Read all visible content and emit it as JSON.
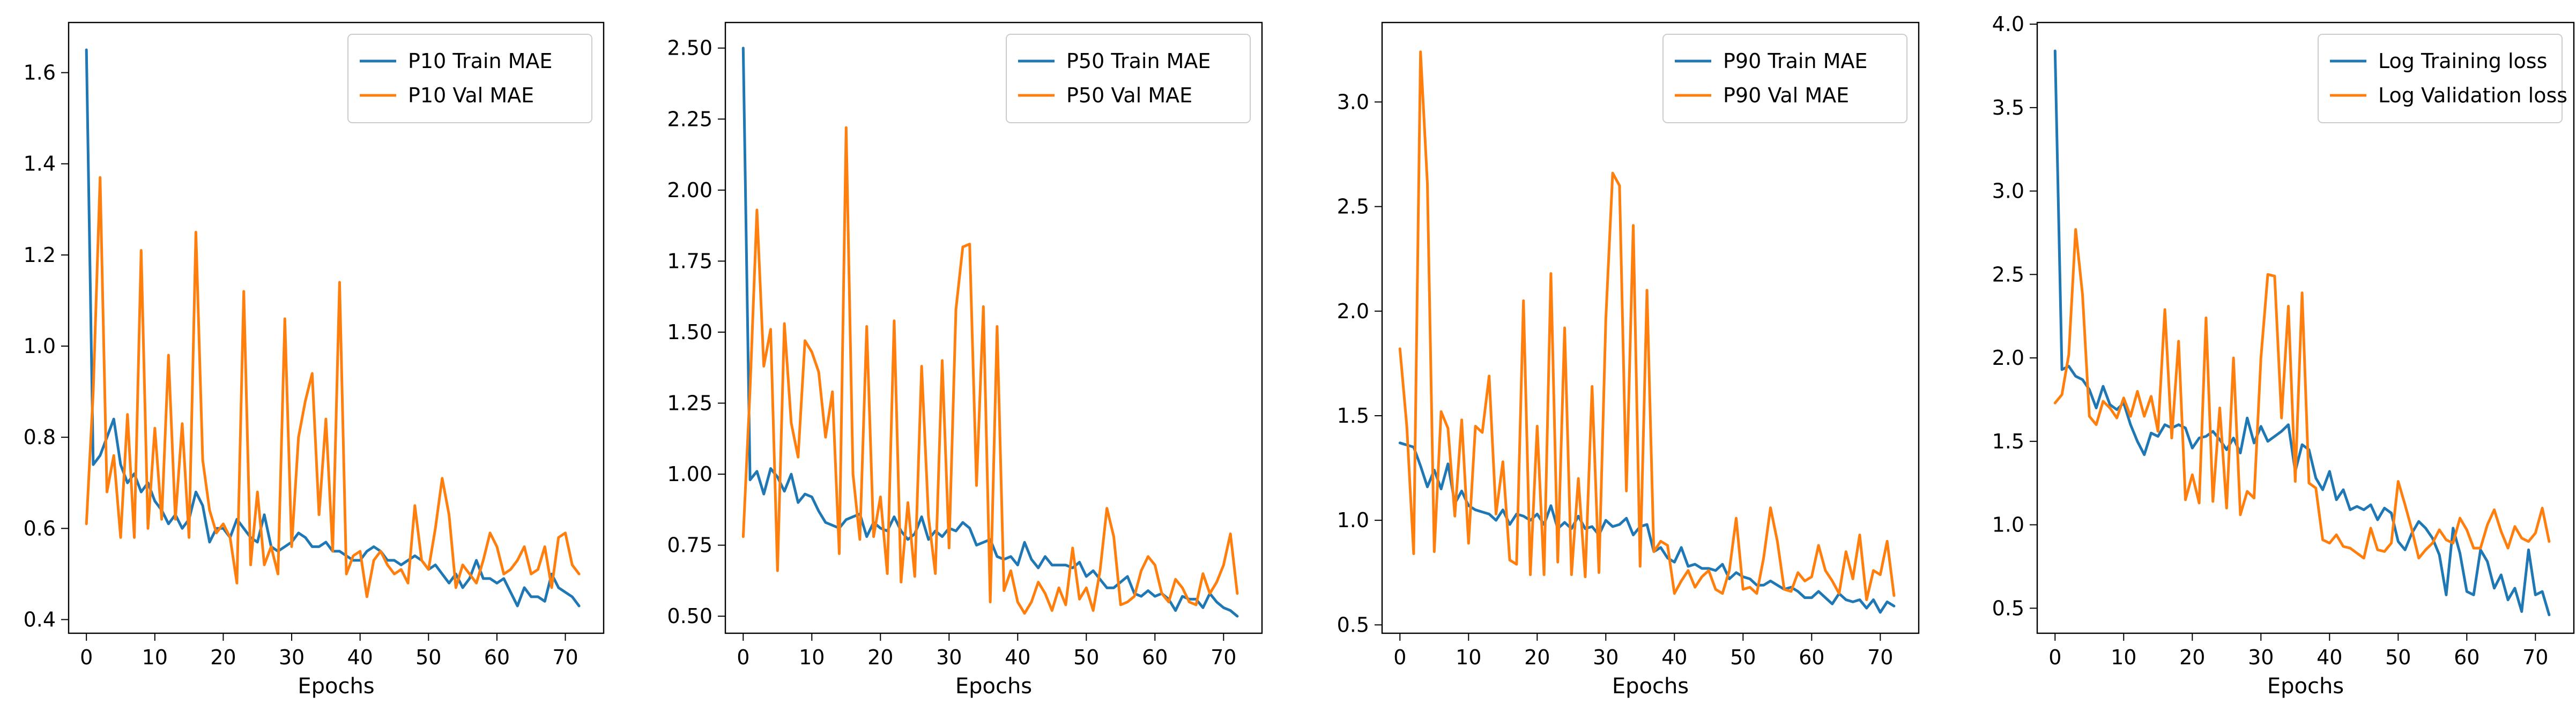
{
  "chart_data": [
    {
      "type": "line",
      "xlabel": "Epochs",
      "ylabel": "",
      "xlim": [
        -2.6,
        75.6
      ],
      "ylim": [
        0.37,
        1.71
      ],
      "xticks": [
        0,
        10,
        20,
        30,
        40,
        50,
        60,
        70
      ],
      "yticks": [
        0.4,
        0.6,
        0.8,
        1.0,
        1.2,
        1.4,
        1.6
      ],
      "ytick_labels": [
        "0.4",
        "0.6",
        "0.8",
        "1.0",
        "1.2",
        "1.4",
        "1.6"
      ],
      "legend_position": "top-right",
      "series": [
        {
          "name": "P10 Train MAE",
          "color": "#1f77b4",
          "values": [
            1.65,
            0.74,
            0.76,
            0.8,
            0.84,
            0.74,
            0.7,
            0.72,
            0.68,
            0.7,
            0.66,
            0.64,
            0.61,
            0.63,
            0.6,
            0.62,
            0.68,
            0.65,
            0.57,
            0.6,
            0.6,
            0.58,
            0.62,
            0.6,
            0.58,
            0.57,
            0.63,
            0.56,
            0.55,
            0.56,
            0.57,
            0.59,
            0.58,
            0.56,
            0.56,
            0.57,
            0.55,
            0.55,
            0.54,
            0.53,
            0.53,
            0.55,
            0.56,
            0.55,
            0.53,
            0.53,
            0.52,
            0.53,
            0.54,
            0.53,
            0.51,
            0.52,
            0.5,
            0.48,
            0.5,
            0.47,
            0.49,
            0.53,
            0.49,
            0.49,
            0.48,
            0.49,
            0.46,
            0.43,
            0.47,
            0.45,
            0.45,
            0.44,
            0.5,
            0.47,
            0.46,
            0.45,
            0.43
          ]
        },
        {
          "name": "P10 Val MAE",
          "color": "#ff7f0e",
          "values": [
            0.61,
            0.9,
            1.37,
            0.68,
            0.76,
            0.58,
            0.85,
            0.58,
            1.21,
            0.6,
            0.82,
            0.62,
            0.98,
            0.62,
            0.83,
            0.58,
            1.25,
            0.75,
            0.64,
            0.59,
            0.61,
            0.58,
            0.48,
            1.12,
            0.52,
            0.68,
            0.52,
            0.56,
            0.5,
            1.06,
            0.56,
            0.8,
            0.88,
            0.94,
            0.63,
            0.84,
            0.55,
            1.14,
            0.5,
            0.54,
            0.55,
            0.45,
            0.53,
            0.55,
            0.52,
            0.5,
            0.51,
            0.48,
            0.65,
            0.53,
            0.51,
            0.6,
            0.71,
            0.63,
            0.47,
            0.52,
            0.5,
            0.48,
            0.53,
            0.59,
            0.56,
            0.5,
            0.51,
            0.53,
            0.56,
            0.5,
            0.51,
            0.56,
            0.47,
            0.58,
            0.59,
            0.52,
            0.5
          ]
        }
      ]
    },
    {
      "type": "line",
      "xlabel": "Epochs",
      "ylabel": "",
      "xlim": [
        -2.6,
        75.6
      ],
      "ylim": [
        0.44,
        2.59
      ],
      "xticks": [
        0,
        10,
        20,
        30,
        40,
        50,
        60,
        70
      ],
      "yticks": [
        0.5,
        0.75,
        1.0,
        1.25,
        1.5,
        1.75,
        2.0,
        2.25,
        2.5
      ],
      "ytick_labels": [
        "0.50",
        "0.75",
        "1.00",
        "1.25",
        "1.50",
        "1.75",
        "2.00",
        "2.25",
        "2.50"
      ],
      "legend_position": "top-right",
      "series": [
        {
          "name": "P50 Train MAE",
          "color": "#1f77b4",
          "values": [
            2.5,
            0.98,
            1.01,
            0.93,
            1.02,
            0.99,
            0.94,
            1.0,
            0.9,
            0.93,
            0.92,
            0.87,
            0.83,
            0.82,
            0.81,
            0.84,
            0.85,
            0.86,
            0.78,
            0.83,
            0.81,
            0.8,
            0.85,
            0.8,
            0.77,
            0.79,
            0.85,
            0.77,
            0.8,
            0.78,
            0.81,
            0.8,
            0.83,
            0.81,
            0.75,
            0.76,
            0.77,
            0.71,
            0.7,
            0.71,
            0.68,
            0.76,
            0.7,
            0.67,
            0.71,
            0.68,
            0.68,
            0.68,
            0.67,
            0.69,
            0.64,
            0.66,
            0.63,
            0.6,
            0.6,
            0.62,
            0.64,
            0.58,
            0.57,
            0.59,
            0.57,
            0.58,
            0.56,
            0.52,
            0.57,
            0.56,
            0.56,
            0.53,
            0.58,
            0.55,
            0.53,
            0.52,
            0.5
          ]
        },
        {
          "name": "P50 Val MAE",
          "color": "#ff7f0e",
          "values": [
            0.78,
            1.3,
            1.93,
            1.38,
            1.51,
            0.66,
            1.53,
            1.18,
            1.06,
            1.47,
            1.43,
            1.36,
            1.13,
            1.29,
            0.72,
            2.22,
            1.0,
            0.77,
            1.52,
            0.78,
            0.92,
            0.65,
            1.54,
            0.62,
            0.9,
            0.64,
            1.38,
            0.85,
            0.65,
            1.4,
            0.74,
            1.58,
            1.8,
            1.81,
            0.96,
            1.59,
            0.55,
            1.52,
            0.59,
            0.66,
            0.55,
            0.51,
            0.55,
            0.62,
            0.58,
            0.52,
            0.6,
            0.54,
            0.74,
            0.56,
            0.6,
            0.52,
            0.66,
            0.88,
            0.78,
            0.54,
            0.55,
            0.57,
            0.66,
            0.71,
            0.68,
            0.58,
            0.55,
            0.63,
            0.6,
            0.55,
            0.54,
            0.65,
            0.58,
            0.62,
            0.68,
            0.79,
            0.58
          ]
        }
      ]
    },
    {
      "type": "line",
      "xlabel": "Epochs",
      "ylabel": "",
      "xlim": [
        -2.6,
        75.6
      ],
      "ylim": [
        0.46,
        3.38
      ],
      "xticks": [
        0,
        10,
        20,
        30,
        40,
        50,
        60,
        70
      ],
      "yticks": [
        0.5,
        1.0,
        1.5,
        2.0,
        2.5,
        3.0
      ],
      "ytick_labels": [
        "0.5",
        "1.0",
        "1.5",
        "2.0",
        "2.5",
        "3.0"
      ],
      "legend_position": "top-right",
      "series": [
        {
          "name": "P90 Train MAE",
          "color": "#1f77b4",
          "values": [
            1.37,
            1.36,
            1.35,
            1.26,
            1.16,
            1.24,
            1.15,
            1.27,
            1.08,
            1.14,
            1.07,
            1.05,
            1.04,
            1.03,
            1.0,
            1.05,
            0.98,
            1.03,
            1.02,
            1.0,
            1.03,
            0.98,
            1.07,
            0.96,
            0.99,
            0.96,
            1.02,
            0.96,
            0.97,
            0.93,
            1.0,
            0.97,
            0.98,
            1.01,
            0.93,
            0.97,
            0.98,
            0.85,
            0.87,
            0.82,
            0.8,
            0.87,
            0.78,
            0.79,
            0.77,
            0.77,
            0.76,
            0.79,
            0.72,
            0.75,
            0.73,
            0.72,
            0.69,
            0.69,
            0.71,
            0.69,
            0.67,
            0.68,
            0.66,
            0.63,
            0.63,
            0.66,
            0.63,
            0.6,
            0.65,
            0.62,
            0.61,
            0.62,
            0.58,
            0.62,
            0.56,
            0.61,
            0.59
          ]
        },
        {
          "name": "P90 Val MAE",
          "color": "#ff7f0e",
          "values": [
            1.82,
            1.45,
            0.84,
            3.24,
            2.61,
            0.85,
            1.52,
            1.44,
            1.02,
            1.48,
            0.89,
            1.45,
            1.42,
            1.69,
            1.03,
            1.28,
            0.81,
            0.79,
            2.05,
            0.74,
            1.45,
            0.74,
            2.18,
            0.8,
            1.92,
            0.74,
            1.2,
            0.73,
            1.64,
            0.75,
            1.96,
            2.66,
            2.6,
            1.14,
            2.41,
            0.78,
            2.1,
            0.85,
            0.9,
            0.88,
            0.65,
            0.71,
            0.76,
            0.68,
            0.73,
            0.76,
            0.67,
            0.65,
            0.76,
            1.01,
            0.67,
            0.68,
            0.65,
            0.82,
            1.06,
            0.9,
            0.67,
            0.66,
            0.75,
            0.71,
            0.73,
            0.88,
            0.76,
            0.71,
            0.65,
            0.85,
            0.72,
            0.93,
            0.62,
            0.76,
            0.74,
            0.9,
            0.64
          ]
        }
      ]
    },
    {
      "type": "line",
      "xlabel": "Epochs",
      "ylabel": "",
      "xlim": [
        -2.6,
        75.6
      ],
      "ylim": [
        0.35,
        4.01
      ],
      "xticks": [
        0,
        10,
        20,
        30,
        40,
        50,
        60,
        70
      ],
      "yticks": [
        0.5,
        1.0,
        1.5,
        2.0,
        2.5,
        3.0,
        3.5,
        4.0
      ],
      "ytick_labels": [
        "0.5",
        "1.0",
        "1.5",
        "2.0",
        "2.5",
        "3.0",
        "3.5",
        "4.0"
      ],
      "legend_position": "top-right",
      "series": [
        {
          "name": "Log Training loss",
          "color": "#1f77b4",
          "values": [
            3.84,
            1.93,
            1.95,
            1.89,
            1.87,
            1.81,
            1.7,
            1.83,
            1.72,
            1.69,
            1.73,
            1.6,
            1.5,
            1.42,
            1.55,
            1.53,
            1.6,
            1.58,
            1.6,
            1.58,
            1.46,
            1.52,
            1.53,
            1.56,
            1.51,
            1.45,
            1.52,
            1.43,
            1.64,
            1.49,
            1.59,
            1.5,
            1.53,
            1.56,
            1.6,
            1.32,
            1.48,
            1.45,
            1.28,
            1.21,
            1.32,
            1.15,
            1.21,
            1.09,
            1.11,
            1.09,
            1.12,
            1.03,
            1.1,
            1.07,
            0.9,
            0.85,
            0.95,
            1.02,
            0.98,
            0.92,
            0.82,
            0.58,
            0.98,
            0.83,
            0.6,
            0.58,
            0.85,
            0.78,
            0.62,
            0.7,
            0.55,
            0.62,
            0.48,
            0.85,
            0.58,
            0.6,
            0.46
          ]
        },
        {
          "name": "Log Validation loss",
          "color": "#ff7f0e",
          "values": [
            1.73,
            1.78,
            2.02,
            2.77,
            2.38,
            1.65,
            1.6,
            1.74,
            1.7,
            1.64,
            1.76,
            1.65,
            1.8,
            1.65,
            1.77,
            1.56,
            2.29,
            1.52,
            2.1,
            1.15,
            1.3,
            1.13,
            2.24,
            1.14,
            1.7,
            1.1,
            2.0,
            1.06,
            1.2,
            1.16,
            2.0,
            2.5,
            2.49,
            1.64,
            2.31,
            1.26,
            2.39,
            1.25,
            1.22,
            0.91,
            0.89,
            0.94,
            0.87,
            0.86,
            0.83,
            0.8,
            0.98,
            0.85,
            0.84,
            0.89,
            1.26,
            1.12,
            0.97,
            0.8,
            0.85,
            0.89,
            0.97,
            0.91,
            0.89,
            1.04,
            0.97,
            0.86,
            0.86,
            1.0,
            1.09,
            0.96,
            0.86,
            0.99,
            0.92,
            0.9,
            0.95,
            1.1,
            0.9
          ]
        }
      ]
    }
  ]
}
